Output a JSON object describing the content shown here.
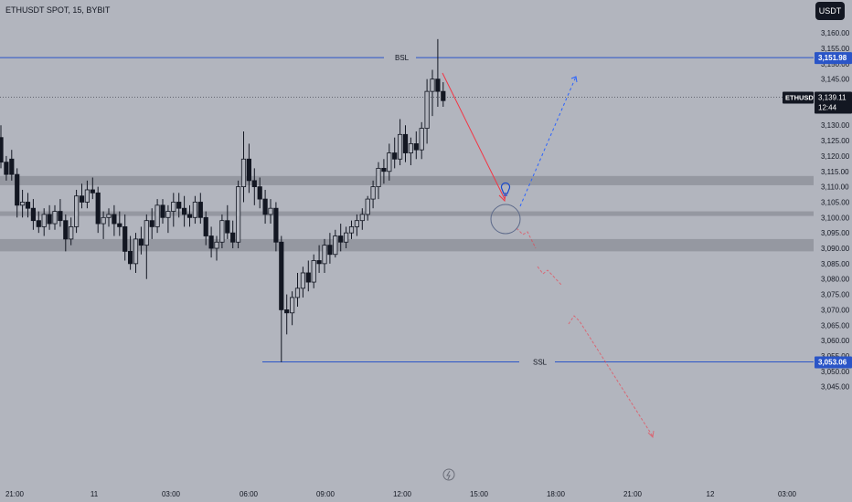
{
  "header": {
    "title": "ETHUSDT SPOT, 15, BYBIT",
    "currency_button": "USDT"
  },
  "price_scale": {
    "ticks": [
      "3,160.00",
      "3,155.00",
      "3,150.00",
      "3,145.00",
      "3,140.00",
      "3,135.00",
      "3,130.00",
      "3,125.00",
      "3,120.00",
      "3,115.00",
      "3,110.00",
      "3,105.00",
      "3,100.00",
      "3,095.00",
      "3,090.00",
      "3,085.00",
      "3,080.00",
      "3,075.00",
      "3,070.00",
      "3,065.00",
      "3,060.00",
      "3,055.00",
      "3,050.00",
      "3,045.00"
    ],
    "bsl_label": "3,151.98",
    "current_symbol": "ETHUSDT",
    "current_price": "3,139.11",
    "countdown": "12:44",
    "ssl_label": "3,053.06"
  },
  "time_axis": {
    "labels": [
      "21:00",
      "11",
      "03:00",
      "06:00",
      "09:00",
      "12:00",
      "15:00",
      "18:00",
      "21:00",
      "12",
      "03:00"
    ]
  },
  "annotations": {
    "bsl": "BSL",
    "ssl": "SSL"
  },
  "colors": {
    "background": "#b2b5be",
    "zone": "#9598a1",
    "candle": "#131722",
    "level_line": "#2a55c7",
    "projection_down": "#f23645",
    "projection_up": "#2962ff",
    "bulb": "#1848cc"
  },
  "chart_data": {
    "type": "candlestick",
    "interval": "15",
    "price_range": [
      3043,
      3163
    ],
    "levels": [
      {
        "name": "BSL",
        "price": 3151.98
      },
      {
        "name": "SSL",
        "price": 3053.06
      }
    ],
    "current_price": 3139.11,
    "zones": [
      [
        3110.5,
        3113.5
      ],
      [
        3100.5,
        3102
      ],
      [
        3089,
        3093
      ]
    ],
    "candles": [
      {
        "o": 3126,
        "h": 3130,
        "l": 3116,
        "c": 3118
      },
      {
        "o": 3118,
        "h": 3120,
        "l": 3112,
        "c": 3114
      },
      {
        "o": 3119,
        "h": 3122,
        "l": 3112,
        "c": 3114
      },
      {
        "o": 3114,
        "h": 3116,
        "l": 3100,
        "c": 3104
      },
      {
        "o": 3104,
        "h": 3109,
        "l": 3100,
        "c": 3105
      },
      {
        "o": 3105,
        "h": 3108,
        "l": 3100,
        "c": 3103
      },
      {
        "o": 3103,
        "h": 3106,
        "l": 3096,
        "c": 3099
      },
      {
        "o": 3099,
        "h": 3102,
        "l": 3095,
        "c": 3097
      },
      {
        "o": 3097,
        "h": 3103,
        "l": 3094,
        "c": 3101
      },
      {
        "o": 3101,
        "h": 3104,
        "l": 3096,
        "c": 3098
      },
      {
        "o": 3098,
        "h": 3104,
        "l": 3096,
        "c": 3102
      },
      {
        "o": 3102,
        "h": 3106,
        "l": 3097,
        "c": 3099
      },
      {
        "o": 3099,
        "h": 3101,
        "l": 3089,
        "c": 3093
      },
      {
        "o": 3093,
        "h": 3100,
        "l": 3091,
        "c": 3097
      },
      {
        "o": 3097,
        "h": 3109,
        "l": 3095,
        "c": 3107
      },
      {
        "o": 3107,
        "h": 3111,
        "l": 3103,
        "c": 3105
      },
      {
        "o": 3105,
        "h": 3112,
        "l": 3103,
        "c": 3109
      },
      {
        "o": 3109,
        "h": 3113,
        "l": 3106,
        "c": 3108
      },
      {
        "o": 3108,
        "h": 3110,
        "l": 3095,
        "c": 3098
      },
      {
        "o": 3098,
        "h": 3102,
        "l": 3093,
        "c": 3100
      },
      {
        "o": 3100,
        "h": 3103,
        "l": 3097,
        "c": 3101
      },
      {
        "o": 3101,
        "h": 3104,
        "l": 3094,
        "c": 3098
      },
      {
        "o": 3098,
        "h": 3102,
        "l": 3094,
        "c": 3097
      },
      {
        "o": 3097,
        "h": 3101,
        "l": 3086,
        "c": 3089
      },
      {
        "o": 3089,
        "h": 3094,
        "l": 3083,
        "c": 3085
      },
      {
        "o": 3085,
        "h": 3095,
        "l": 3082,
        "c": 3093
      },
      {
        "o": 3093,
        "h": 3097,
        "l": 3088,
        "c": 3091
      },
      {
        "o": 3091,
        "h": 3101,
        "l": 3080,
        "c": 3099
      },
      {
        "o": 3099,
        "h": 3103,
        "l": 3093,
        "c": 3097
      },
      {
        "o": 3097,
        "h": 3106,
        "l": 3095,
        "c": 3104
      },
      {
        "o": 3104,
        "h": 3106,
        "l": 3098,
        "c": 3100
      },
      {
        "o": 3100,
        "h": 3104,
        "l": 3095,
        "c": 3102
      },
      {
        "o": 3102,
        "h": 3108,
        "l": 3097,
        "c": 3105
      },
      {
        "o": 3105,
        "h": 3108,
        "l": 3100,
        "c": 3103
      },
      {
        "o": 3103,
        "h": 3107,
        "l": 3097,
        "c": 3101
      },
      {
        "o": 3101,
        "h": 3104,
        "l": 3097,
        "c": 3100
      },
      {
        "o": 3100,
        "h": 3107,
        "l": 3098,
        "c": 3105
      },
      {
        "o": 3105,
        "h": 3108,
        "l": 3098,
        "c": 3100
      },
      {
        "o": 3100,
        "h": 3102,
        "l": 3091,
        "c": 3094
      },
      {
        "o": 3094,
        "h": 3097,
        "l": 3087,
        "c": 3090
      },
      {
        "o": 3090,
        "h": 3094,
        "l": 3086,
        "c": 3092
      },
      {
        "o": 3092,
        "h": 3101,
        "l": 3090,
        "c": 3099
      },
      {
        "o": 3099,
        "h": 3104,
        "l": 3093,
        "c": 3095
      },
      {
        "o": 3095,
        "h": 3099,
        "l": 3090,
        "c": 3092
      },
      {
        "o": 3092,
        "h": 3112,
        "l": 3090,
        "c": 3110
      },
      {
        "o": 3110,
        "h": 3128,
        "l": 3105,
        "c": 3119
      },
      {
        "o": 3119,
        "h": 3124,
        "l": 3108,
        "c": 3112
      },
      {
        "o": 3112,
        "h": 3116,
        "l": 3104,
        "c": 3110
      },
      {
        "o": 3110,
        "h": 3113,
        "l": 3103,
        "c": 3106
      },
      {
        "o": 3106,
        "h": 3109,
        "l": 3098,
        "c": 3101
      },
      {
        "o": 3101,
        "h": 3106,
        "l": 3098,
        "c": 3103
      },
      {
        "o": 3103,
        "h": 3105,
        "l": 3089,
        "c": 3092
      },
      {
        "o": 3092,
        "h": 3094,
        "l": 3053,
        "c": 3070
      },
      {
        "o": 3070,
        "h": 3075,
        "l": 3062,
        "c": 3069
      },
      {
        "o": 3069,
        "h": 3076,
        "l": 3065,
        "c": 3074
      },
      {
        "o": 3074,
        "h": 3082,
        "l": 3071,
        "c": 3077
      },
      {
        "o": 3077,
        "h": 3084,
        "l": 3074,
        "c": 3082
      },
      {
        "o": 3082,
        "h": 3086,
        "l": 3076,
        "c": 3079
      },
      {
        "o": 3079,
        "h": 3088,
        "l": 3077,
        "c": 3086
      },
      {
        "o": 3086,
        "h": 3091,
        "l": 3082,
        "c": 3085
      },
      {
        "o": 3085,
        "h": 3093,
        "l": 3082,
        "c": 3091
      },
      {
        "o": 3091,
        "h": 3095,
        "l": 3085,
        "c": 3088
      },
      {
        "o": 3088,
        "h": 3096,
        "l": 3087,
        "c": 3094
      },
      {
        "o": 3094,
        "h": 3098,
        "l": 3089,
        "c": 3092
      },
      {
        "o": 3092,
        "h": 3097,
        "l": 3090,
        "c": 3095
      },
      {
        "o": 3095,
        "h": 3099,
        "l": 3093,
        "c": 3097
      },
      {
        "o": 3097,
        "h": 3101,
        "l": 3094,
        "c": 3099
      },
      {
        "o": 3099,
        "h": 3103,
        "l": 3096,
        "c": 3101
      },
      {
        "o": 3101,
        "h": 3107,
        "l": 3099,
        "c": 3106
      },
      {
        "o": 3106,
        "h": 3112,
        "l": 3103,
        "c": 3110
      },
      {
        "o": 3110,
        "h": 3118,
        "l": 3106,
        "c": 3116
      },
      {
        "o": 3116,
        "h": 3119,
        "l": 3111,
        "c": 3115
      },
      {
        "o": 3115,
        "h": 3124,
        "l": 3112,
        "c": 3121
      },
      {
        "o": 3121,
        "h": 3126,
        "l": 3116,
        "c": 3119
      },
      {
        "o": 3119,
        "h": 3132,
        "l": 3117,
        "c": 3127
      },
      {
        "o": 3127,
        "h": 3130,
        "l": 3118,
        "c": 3121
      },
      {
        "o": 3121,
        "h": 3126,
        "l": 3117,
        "c": 3124
      },
      {
        "o": 3124,
        "h": 3128,
        "l": 3119,
        "c": 3122
      },
      {
        "o": 3122,
        "h": 3131,
        "l": 3119,
        "c": 3129
      },
      {
        "o": 3129,
        "h": 3145,
        "l": 3124,
        "c": 3141
      },
      {
        "o": 3141,
        "h": 3148,
        "l": 3133,
        "c": 3145
      },
      {
        "o": 3145,
        "h": 3158,
        "l": 3136,
        "c": 3141
      },
      {
        "o": 3141,
        "h": 3144,
        "l": 3136,
        "c": 3138
      }
    ]
  }
}
